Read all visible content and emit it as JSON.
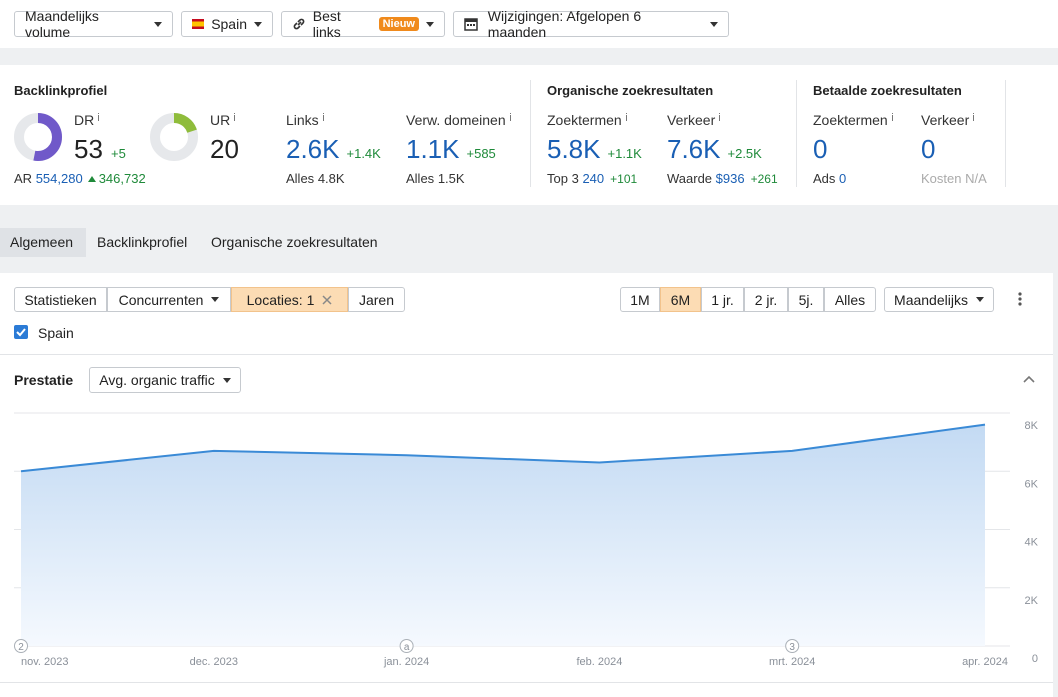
{
  "toolbar": {
    "volume": "Maandelijks volume",
    "country": "Spain",
    "links": "Best links",
    "links_badge": "Nieuw",
    "changes": "Wijzigingen: Afgelopen 6 maanden"
  },
  "overview": {
    "backlinks": {
      "title": "Backlinkprofiel",
      "dr": {
        "label": "DR",
        "value": 53,
        "delta": "+5"
      },
      "ur": {
        "label": "UR",
        "value": 20
      },
      "ar": {
        "label": "AR",
        "value": "554,280",
        "delta": "346,732"
      },
      "links": {
        "label": "Links",
        "value": "2.6K",
        "delta": "+1.4K",
        "sub_label": "Alles",
        "sub_value": "4.8K"
      },
      "domains": {
        "label": "Verw. domeinen",
        "value": "1.1K",
        "delta": "+585",
        "sub_label": "Alles",
        "sub_value": "1.5K"
      }
    },
    "organic": {
      "title": "Organische zoekresultaten",
      "keywords": {
        "label": "Zoektermen",
        "value": "5.8K",
        "delta": "+1.1K",
        "sub_label": "Top 3",
        "sub_value": "240",
        "sub_delta": "+101"
      },
      "traffic": {
        "label": "Verkeer",
        "value": "7.6K",
        "delta": "+2.5K",
        "sub_label": "Waarde",
        "sub_value": "$936",
        "sub_delta": "+261"
      }
    },
    "paid": {
      "title": "Betaalde zoekresultaten",
      "keywords": {
        "label": "Zoektermen",
        "value": "0",
        "sub_label": "Ads",
        "sub_value": "0"
      },
      "traffic": {
        "label": "Verkeer",
        "value": "0",
        "sub_label": "Kosten",
        "sub_value": "N/A"
      }
    }
  },
  "tabs": [
    "Algemeen",
    "Backlinkprofiel",
    "Organische zoekresultaten"
  ],
  "filters": [
    "Statistieken",
    "Concurrenten",
    "Locaties: 1",
    "Jaren"
  ],
  "periods": [
    "1M",
    "6M",
    "1 jr.",
    "2 jr.",
    "5j.",
    "Alles"
  ],
  "interval": "Maandelijks",
  "location": "Spain",
  "section": {
    "title": "Prestatie",
    "metric": "Avg. organic traffic"
  },
  "chart_data": {
    "type": "area",
    "categories": [
      "nov. 2023",
      "dec. 2023",
      "jan. 2024",
      "feb. 2024",
      "mrt. 2024",
      "apr. 2024"
    ],
    "values": [
      6000,
      6700,
      6550,
      6300,
      6700,
      7600
    ],
    "annotations": [
      "2",
      null,
      "a",
      null,
      "3",
      null
    ],
    "color": "#3a8ad6",
    "ylim": [
      0,
      8000
    ],
    "yticks": [
      0,
      {
        "value": 2000,
        "label": "2K"
      },
      {
        "value": 4000,
        "label": "4K"
      },
      {
        "value": 6000,
        "label": "6K"
      },
      {
        "value": 8000,
        "label": "8K"
      }
    ],
    "grid": true
  }
}
